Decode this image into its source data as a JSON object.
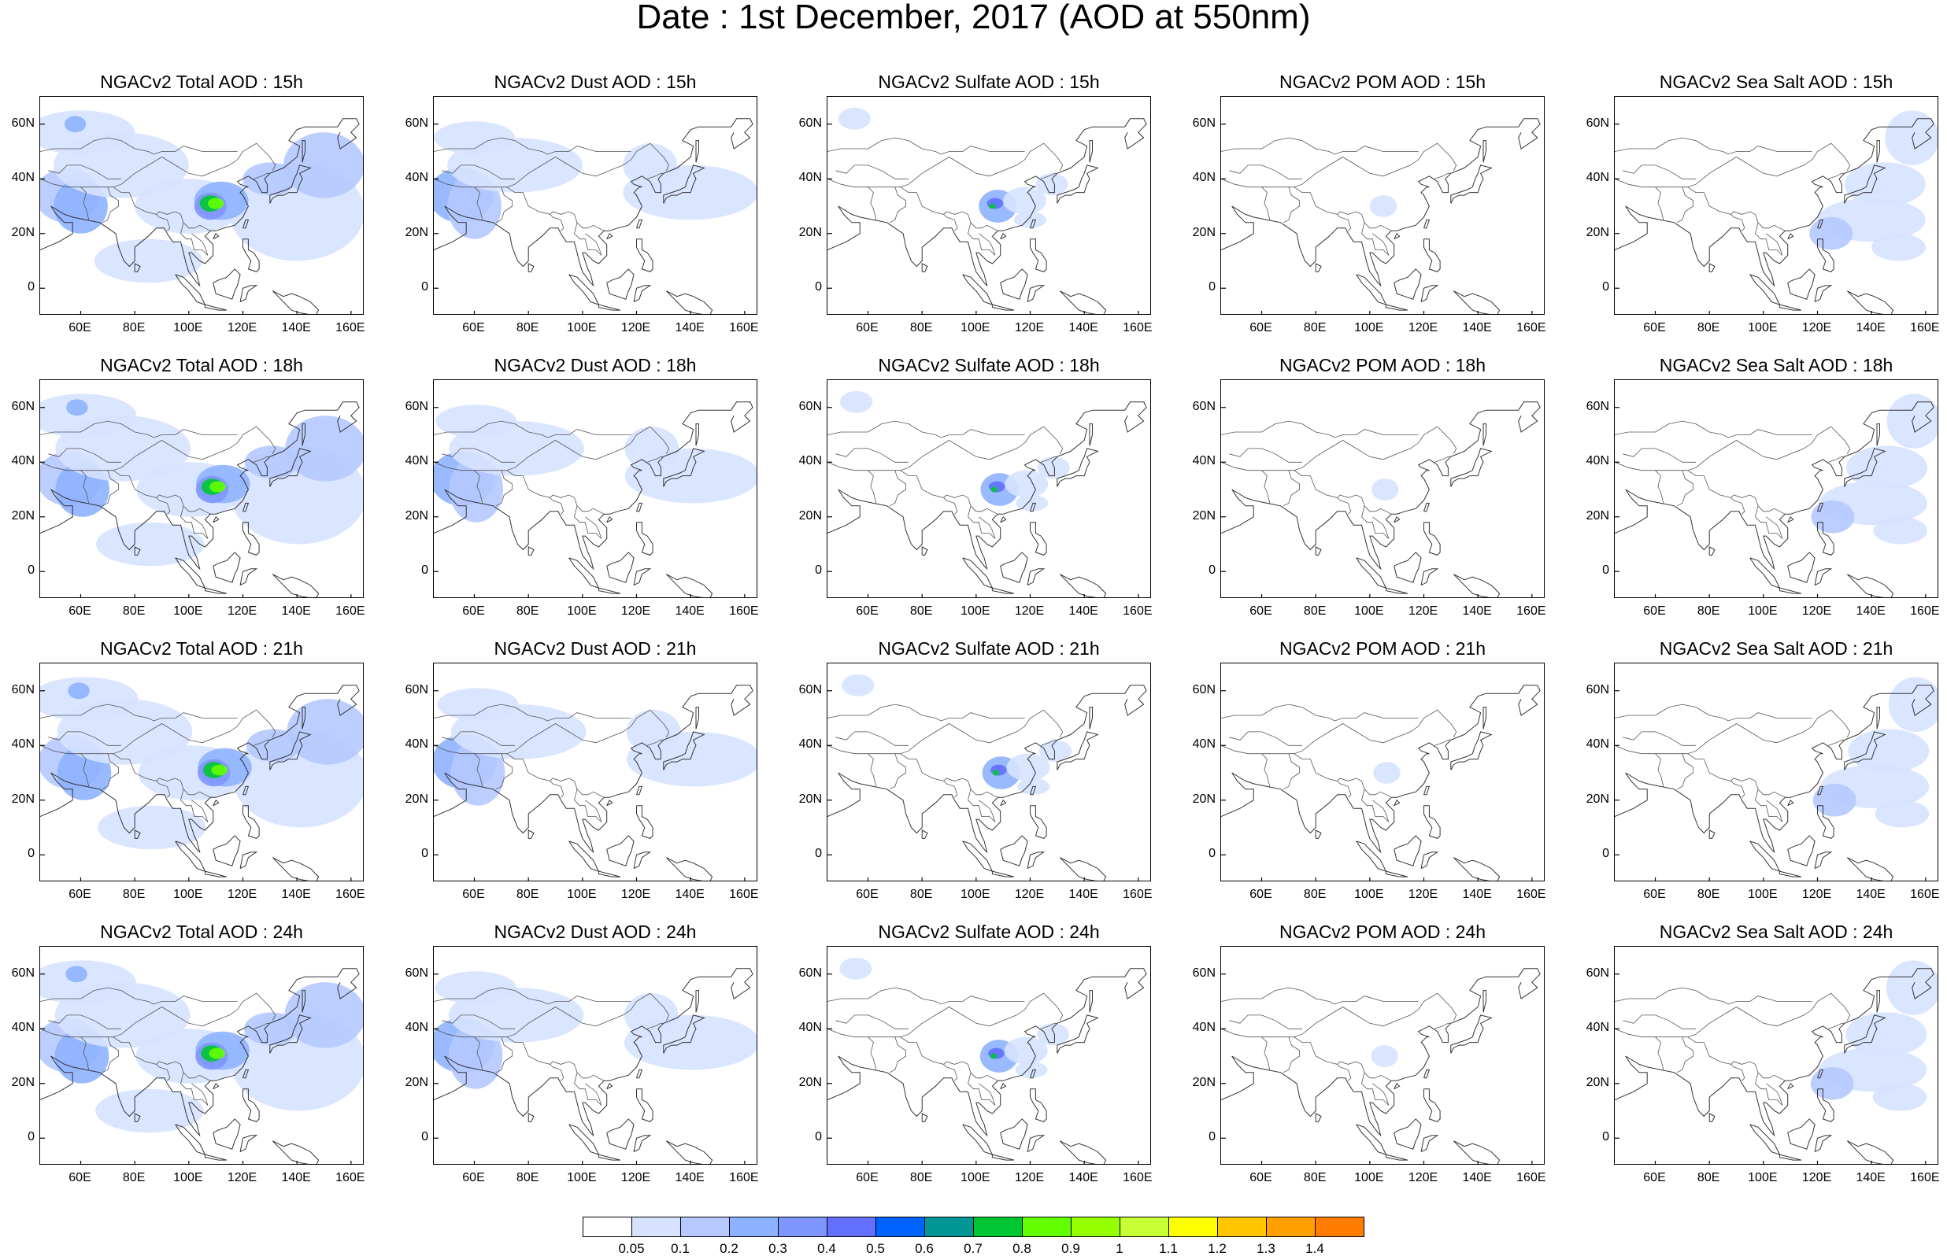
{
  "title": "Date : 1st December, 2017 (AOD at 550nm)",
  "panel_rows": [
    [
      "NGACv2 Total AOD : 15h",
      "NGACv2 Dust AOD : 15h",
      "NGACv2 Sulfate AOD : 15h",
      "NGACv2 POM AOD : 15h",
      "NGACv2 Sea Salt AOD : 15h"
    ],
    [
      "NGACv2 Total AOD : 18h",
      "NGACv2 Dust AOD : 18h",
      "NGACv2 Sulfate AOD : 18h",
      "NGACv2 POM AOD : 18h",
      "NGACv2 Sea Salt AOD : 18h"
    ],
    [
      "NGACv2 Total AOD : 21h",
      "NGACv2 Dust AOD : 21h",
      "NGACv2 Sulfate AOD : 21h",
      "NGACv2 POM AOD : 21h",
      "NGACv2 Sea Salt AOD : 21h"
    ],
    [
      "NGACv2 Total AOD : 24h",
      "NGACv2 Dust AOD : 24h",
      "NGACv2 Sulfate AOD : 24h",
      "NGACv2 POM AOD : 24h",
      "NGACv2 Sea Salt  AOD : 24h"
    ]
  ],
  "lat_labels": [
    "60N",
    "40N",
    "20N",
    "0"
  ],
  "lon_labels": [
    "60E",
    "80E",
    "100E",
    "120E",
    "140E",
    "160E"
  ],
  "colorbar": {
    "labels": [
      "0.05",
      "0.1",
      "0.2",
      "0.3",
      "0.4",
      "0.5",
      "0.6",
      "0.7",
      "0.8",
      "0.9",
      "1",
      "1.1",
      "1.2",
      "1.3",
      "1.4"
    ],
    "colors": [
      "#ffffff",
      "#d6e2ff",
      "#b5c9ff",
      "#8eb2ff",
      "#7f96ff",
      "#6370ff",
      "#0063ff",
      "#009696",
      "#00c633",
      "#63ff00",
      "#96ff00",
      "#c6ff33",
      "#ffff00",
      "#ffc600",
      "#ffa000",
      "#ff7c00",
      "#ff1900"
    ]
  }
}
